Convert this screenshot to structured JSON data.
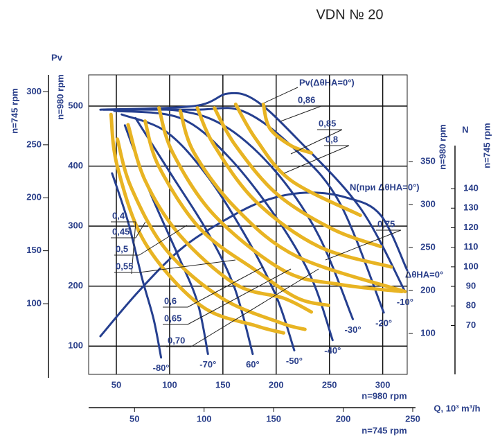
{
  "chart_data": {
    "type": "line",
    "title": "VDN № 20",
    "y_title": "Pv",
    "y_label": "n=980 rpm",
    "y3_label": "n=745 rpm",
    "x_label": "n=980 rpm",
    "x2_label": "n=745 rpm",
    "q_label": "Q, 10³ m³/h",
    "n_title": "N",
    "n980_label": "n=980 rpm",
    "y2_label": "n=745 rpm",
    "xlim": [
      24,
      323
    ],
    "xticks": [
      50,
      100,
      150,
      200,
      250,
      300
    ],
    "x2lim": [
      17,
      252
    ],
    "x2ticks": [
      50,
      100,
      150,
      200,
      250
    ],
    "ylim": [
      53,
      552
    ],
    "yticks": [
      100,
      200,
      300,
      400,
      500
    ],
    "y3lim": [
      30,
      316
    ],
    "y3ticks": [
      100,
      150,
      200,
      250,
      300
    ],
    "y2lim": [
      45,
      162
    ],
    "y2ticks": [
      70,
      80,
      90,
      100,
      110,
      120,
      130,
      140
    ],
    "n980_ticks": [
      350,
      300,
      250,
      200,
      100
    ],
    "grid": true,
    "pv_label": "Pv(ΔθHA=0°)",
    "n_curve_label": "N(при ΔθHA=0°)",
    "n_end_label": "ΔθHA=0°",
    "efficiency_labels": [
      {
        "value": 0.86,
        "label": "0,86"
      },
      {
        "value": 0.85,
        "label": "0,85"
      },
      {
        "value": 0.8,
        "label": "0,8"
      },
      {
        "value": 0.75,
        "label": "0,75"
      },
      {
        "value": 0.4,
        "label": "0,4"
      },
      {
        "value": 0.45,
        "label": "0,45"
      },
      {
        "value": 0.5,
        "label": "0,5"
      },
      {
        "value": 0.55,
        "label": "0,55"
      },
      {
        "value": 0.6,
        "label": "0,6"
      },
      {
        "value": 0.65,
        "label": "0,65"
      },
      {
        "value": 0.7,
        "label": "0,70"
      }
    ],
    "series": [
      {
        "name": "-80°",
        "color": "#253f8f",
        "x": [
          46,
          61,
          74,
          85,
          92
        ],
        "values": [
          388,
          307,
          214,
          145,
          81
        ]
      },
      {
        "name": "-70°",
        "color": "#253f8f",
        "x": [
          58,
          81,
          107,
          126,
          136
        ],
        "values": [
          468,
          359,
          255,
          174,
          87
        ]
      },
      {
        "name": "60°",
        "color": "#253f8f",
        "x": [
          68,
          103,
          136,
          161,
          178
        ],
        "values": [
          480,
          382,
          289,
          197,
          87
        ]
      },
      {
        "name": "-50°",
        "color": "#253f8f",
        "x": [
          55,
          97,
          136,
          175,
          201,
          217
        ],
        "values": [
          486,
          457,
          382,
          272,
          179,
          93
        ]
      },
      {
        "name": "-40°",
        "color": "#253f8f",
        "x": [
          48,
          110,
          155,
          201,
          233,
          253
        ],
        "values": [
          492,
          480,
          416,
          312,
          214,
          110
        ]
      },
      {
        "name": "-30°",
        "color": "#253f8f",
        "x": [
          45,
          110,
          155,
          201,
          240,
          272
        ],
        "values": [
          494,
          492,
          463,
          388,
          284,
          145
        ]
      },
      {
        "name": "-20°",
        "color": "#253f8f",
        "x": [
          38,
          123,
          168,
          214,
          259,
          301
        ],
        "values": [
          494,
          494,
          492,
          434,
          341,
          156
        ]
      },
      {
        "name": "-10°",
        "color": "#253f8f",
        "x": [
          35,
          123,
          155,
          181,
          220,
          279,
          321
        ],
        "values": [
          494,
          500,
          521,
          509,
          445,
          330,
          191
        ]
      },
      {
        "color": "#253f8f",
        "axis": "y2",
        "x": [
          35,
          71,
          110,
          149,
          188,
          227,
          266,
          298,
          323
        ],
        "values": [
          64.5,
          87.5,
          108.8,
          123,
          133.6,
          137.9,
          135.4,
          126.5,
          98.2
        ]
      },
      {
        "color": "#e8b423",
        "x": [
          188,
          194,
          214,
          233
        ],
        "values": [
          503,
          463,
          434,
          422
        ]
      },
      {
        "color": "#e8b423",
        "x": [
          162,
          181,
          214,
          279
        ],
        "values": [
          503,
          445,
          376,
          318
        ]
      },
      {
        "color": "#e8b423",
        "x": [
          142,
          162,
          201,
          253,
          298
        ],
        "values": [
          497,
          434,
          353,
          295,
          266
        ]
      },
      {
        "color": "#e8b423",
        "x": [
          126,
          142,
          181,
          240,
          308
        ],
        "values": [
          497,
          434,
          341,
          266,
          232
        ]
      },
      {
        "color": "#e8b423",
        "x": [
          110,
          123,
          162,
          220,
          321
        ],
        "values": [
          492,
          422,
          330,
          249,
          191
        ]
      },
      {
        "color": "#e8b423",
        "x": [
          90,
          103,
          142,
          207,
          259,
          318
        ],
        "values": [
          497,
          422,
          318,
          226,
          203,
          191
        ]
      },
      {
        "color": "#e8b423",
        "x": [
          77,
          90,
          129,
          181,
          220,
          249
        ],
        "values": [
          475,
          399,
          295,
          226,
          180,
          168
        ]
      },
      {
        "color": "#e8b423",
        "x": [
          61,
          77,
          110,
          162,
          207,
          233
        ],
        "values": [
          469,
          376,
          284,
          203,
          180,
          157
        ]
      },
      {
        "color": "#e8b423",
        "x": [
          51,
          64,
          97,
          149,
          204,
          227
        ],
        "values": [
          445,
          364,
          260,
          180,
          139,
          128
        ]
      },
      {
        "color": "#e8b423",
        "x": [
          45,
          51,
          77,
          129,
          181,
          207
        ],
        "values": [
          486,
          399,
          272,
          168,
          134,
          122
        ]
      }
    ]
  }
}
